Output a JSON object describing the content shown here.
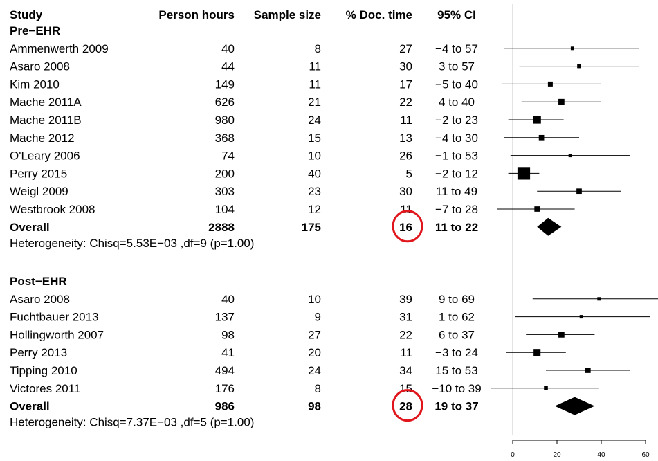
{
  "header": {
    "study": "Study",
    "person_hours": "Person hours",
    "sample_size": "Sample size",
    "doc_time": "% Doc. time",
    "ci": "95% CI"
  },
  "chart_data": {
    "type": "forest",
    "x_ticks": [
      "0",
      "20",
      "40",
      "60"
    ],
    "xlim": [
      0,
      67
    ],
    "groups": [
      {
        "title": "Pre−EHR",
        "studies": [
          {
            "name": "Ammenwerth 2009",
            "hours": "40",
            "n": "8",
            "pct": "27",
            "ci": "−4 to 57",
            "est": 27,
            "lo": -4,
            "hi": 57,
            "weight": 0.35
          },
          {
            "name": "Asaro 2008",
            "hours": "44",
            "n": "11",
            "pct": "30",
            "ci": "3 to 57",
            "est": 30,
            "lo": 3,
            "hi": 57,
            "weight": 0.4
          },
          {
            "name": "Kim 2010",
            "hours": "149",
            "n": "11",
            "pct": "17",
            "ci": "−5 to 40",
            "est": 17,
            "lo": -5,
            "hi": 40,
            "weight": 0.5
          },
          {
            "name": "Mache 2011A",
            "hours": "626",
            "n": "21",
            "pct": "22",
            "ci": "4 to 40",
            "est": 22,
            "lo": 4,
            "hi": 40,
            "weight": 0.62
          },
          {
            "name": "Mache 2011B",
            "hours": "980",
            "n": "24",
            "pct": "11",
            "ci": "−2 to 23",
            "est": 11,
            "lo": -2,
            "hi": 23,
            "weight": 0.8
          },
          {
            "name": "Mache 2012",
            "hours": "368",
            "n": "15",
            "pct": "13",
            "ci": "−4 to 30",
            "est": 13,
            "lo": -4,
            "hi": 30,
            "weight": 0.55
          },
          {
            "name": "O'Leary 2006",
            "hours": "74",
            "n": "10",
            "pct": "26",
            "ci": "−1 to 53",
            "est": 26,
            "lo": -1,
            "hi": 53,
            "weight": 0.35
          },
          {
            "name": "Perry 2015",
            "hours": "200",
            "n": "40",
            "pct": "5",
            "ci": "−2 to 12",
            "est": 5,
            "lo": -2,
            "hi": 12,
            "weight": 1.3
          },
          {
            "name": "Weigl 2009",
            "hours": "303",
            "n": "23",
            "pct": "30",
            "ci": "11 to 49",
            "est": 30,
            "lo": 11,
            "hi": 49,
            "weight": 0.55
          },
          {
            "name": "Westbrook 2008",
            "hours": "104",
            "n": "12",
            "pct": "11",
            "ci": "−7 to 28",
            "est": 11,
            "lo": -7,
            "hi": 28,
            "weight": 0.55
          }
        ],
        "overall": {
          "label": "Overall",
          "hours": "2888",
          "n": "175",
          "pct": "16",
          "ci": "11 to 22",
          "est": 16,
          "lo": 11,
          "hi": 22
        },
        "heterogeneity": "Heterogeneity: Chisq=5.53E−03 ,df=9 (p=1.00)"
      },
      {
        "title": "Post−EHR",
        "studies": [
          {
            "name": "Asaro 2008",
            "hours": "40",
            "n": "10",
            "pct": "39",
            "ci": "9 to 69",
            "est": 39,
            "lo": 9,
            "hi": 69,
            "weight": 0.35
          },
          {
            "name": "Fuchtbauer 2013",
            "hours": "137",
            "n": "9",
            "pct": "31",
            "ci": "1 to 62",
            "est": 31,
            "lo": 1,
            "hi": 62,
            "weight": 0.3
          },
          {
            "name": "Hollingworth 2007",
            "hours": "98",
            "n": "27",
            "pct": "22",
            "ci": "6 to 37",
            "est": 22,
            "lo": 6,
            "hi": 37,
            "weight": 0.62
          },
          {
            "name": "Perry 2013",
            "hours": "41",
            "n": "20",
            "pct": "11",
            "ci": "−3 to 24",
            "est": 11,
            "lo": -3,
            "hi": 24,
            "weight": 0.72
          },
          {
            "name": "Tipping 2010",
            "hours": "494",
            "n": "24",
            "pct": "34",
            "ci": "15 to 53",
            "est": 34,
            "lo": 15,
            "hi": 53,
            "weight": 0.55
          },
          {
            "name": "Victores 2011",
            "hours": "176",
            "n": "8",
            "pct": "15",
            "ci": "−10 to 39",
            "est": 15,
            "lo": -10,
            "hi": 39,
            "weight": 0.4
          }
        ],
        "overall": {
          "label": "Overall",
          "hours": "986",
          "n": "98",
          "pct": "28",
          "ci": "19 to 37",
          "est": 28,
          "lo": 19,
          "hi": 37
        },
        "heterogeneity": "Heterogeneity: Chisq=7.37E−03 ,df=5 (p=1.00)"
      }
    ],
    "highlight_color": "#e0161c"
  }
}
